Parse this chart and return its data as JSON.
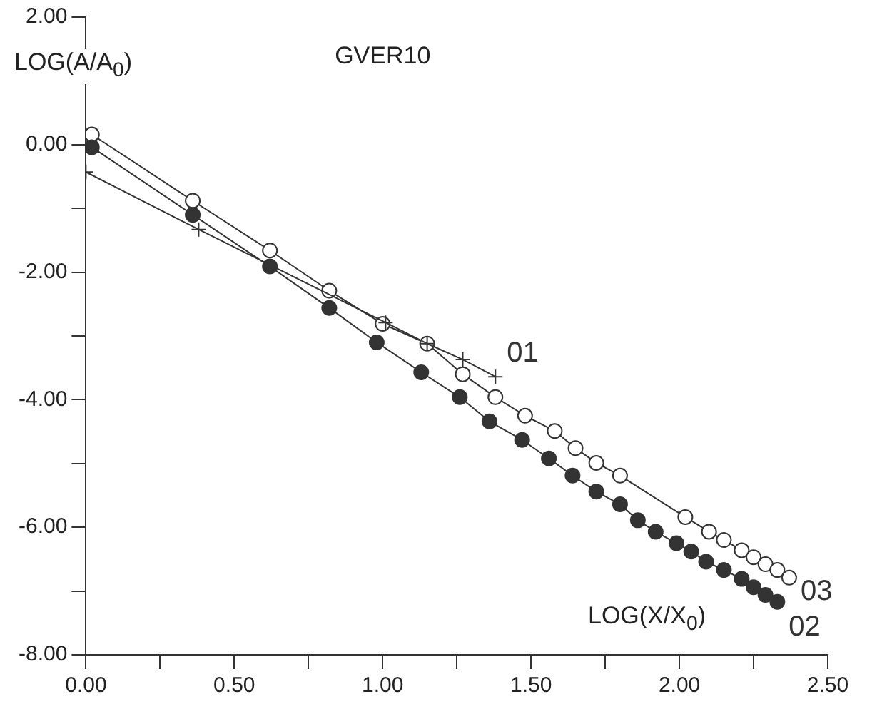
{
  "chart_data": {
    "type": "line",
    "title": "GVER10",
    "xlabel": "LOG(X/X$_{0}$)",
    "ylabel": "LOG(A/A$_{0}$)",
    "xlim": [
      0,
      2.5
    ],
    "xticks": [
      {
        "value": 0,
        "label": "0.00"
      },
      {
        "value": 0.25,
        "label": null
      },
      {
        "value": 0.5,
        "label": "0.50"
      },
      {
        "value": 0.75,
        "label": null
      },
      {
        "value": 1,
        "label": "1.00"
      },
      {
        "value": 1.25,
        "label": null
      },
      {
        "value": 1.5,
        "label": "1.50"
      },
      {
        "value": 1.75,
        "label": null
      },
      {
        "value": 2,
        "label": "2.00"
      },
      {
        "value": 2.25,
        "label": null
      },
      {
        "value": 2.5,
        "label": "2.50"
      }
    ],
    "ylim": [
      -8,
      2
    ],
    "yticks": [
      {
        "value": -8,
        "label": "-8.00"
      },
      {
        "value": -7,
        "label": null
      },
      {
        "value": -6,
        "label": "-6.00"
      },
      {
        "value": -5,
        "label": null
      },
      {
        "value": -4,
        "label": "-4.00"
      },
      {
        "value": -3,
        "label": null
      },
      {
        "value": -2,
        "label": "-2.00"
      },
      {
        "value": -1,
        "label": null
      },
      {
        "value": 0,
        "label": "0.00"
      },
      {
        "value": 1,
        "label": null
      },
      {
        "value": 2,
        "label": "2.00"
      }
    ],
    "grid": false,
    "legend": false,
    "line_style": "solid",
    "series": [
      {
        "name": "01",
        "color": "#333333",
        "marker": "cross",
        "x": [
          0,
          0.38,
          1.01,
          1.15,
          1.27,
          1.38
        ],
        "values": [
          -0.43,
          -1.33,
          -2.79,
          -3.12,
          -3.37,
          -3.64
        ]
      },
      {
        "name": "02",
        "color": "#333333",
        "marker": "circle",
        "x": [
          0.02,
          0.36,
          0.62,
          0.82,
          0.98,
          1.13,
          1.26,
          1.36,
          1.47,
          1.56,
          1.64,
          1.72,
          1.8,
          1.86,
          1.92,
          1.99,
          2.04,
          2.09,
          2.15,
          2.21,
          2.25,
          2.29,
          2.33
        ],
        "values": [
          -0.04,
          -1.1,
          -1.91,
          -2.56,
          -3.1,
          -3.57,
          -3.96,
          -4.34,
          -4.63,
          -4.92,
          -5.19,
          -5.44,
          -5.64,
          -5.89,
          -6.07,
          -6.25,
          -6.38,
          -6.54,
          -6.67,
          -6.81,
          -6.94,
          -7.06,
          -7.17
        ]
      },
      {
        "name": "03",
        "color": "#333333",
        "marker": "open circle",
        "x": [
          0.02,
          0.36,
          0.62,
          0.82,
          1,
          1.15,
          1.27,
          1.38,
          1.48,
          1.58,
          1.65,
          1.72,
          1.8,
          2.02,
          2.1,
          2.15,
          2.21,
          2.25,
          2.29,
          2.33,
          2.37
        ],
        "values": [
          0.16,
          -0.88,
          -1.66,
          -2.29,
          -2.81,
          -3.12,
          -3.6,
          -3.96,
          -4.25,
          -4.49,
          -4.76,
          -4.99,
          -5.19,
          -5.84,
          -6.07,
          -6.2,
          -6.36,
          -6.47,
          -6.58,
          -6.67,
          -6.79
        ]
      }
    ]
  }
}
